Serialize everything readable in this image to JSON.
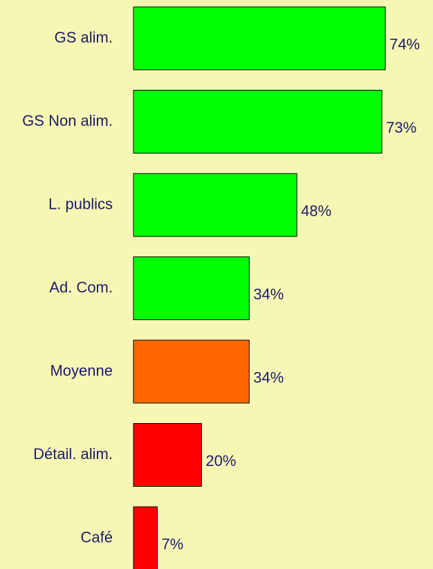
{
  "chart_data": {
    "type": "bar",
    "orientation": "horizontal",
    "categories": [
      "GS alim.",
      "GS Non alim.",
      "L. publics",
      "Ad. Com.",
      "Moyenne",
      "Détail. alim.",
      "Café"
    ],
    "values": [
      74,
      73,
      48,
      34,
      34,
      20,
      7
    ],
    "value_labels": [
      "74%",
      "73%",
      "48%",
      "34%",
      "34%",
      "20%",
      "7%"
    ],
    "colors": [
      "#00ff00",
      "#00ff00",
      "#00ff00",
      "#00ff00",
      "#ff6600",
      "#ff0000",
      "#ff0000"
    ]
  }
}
